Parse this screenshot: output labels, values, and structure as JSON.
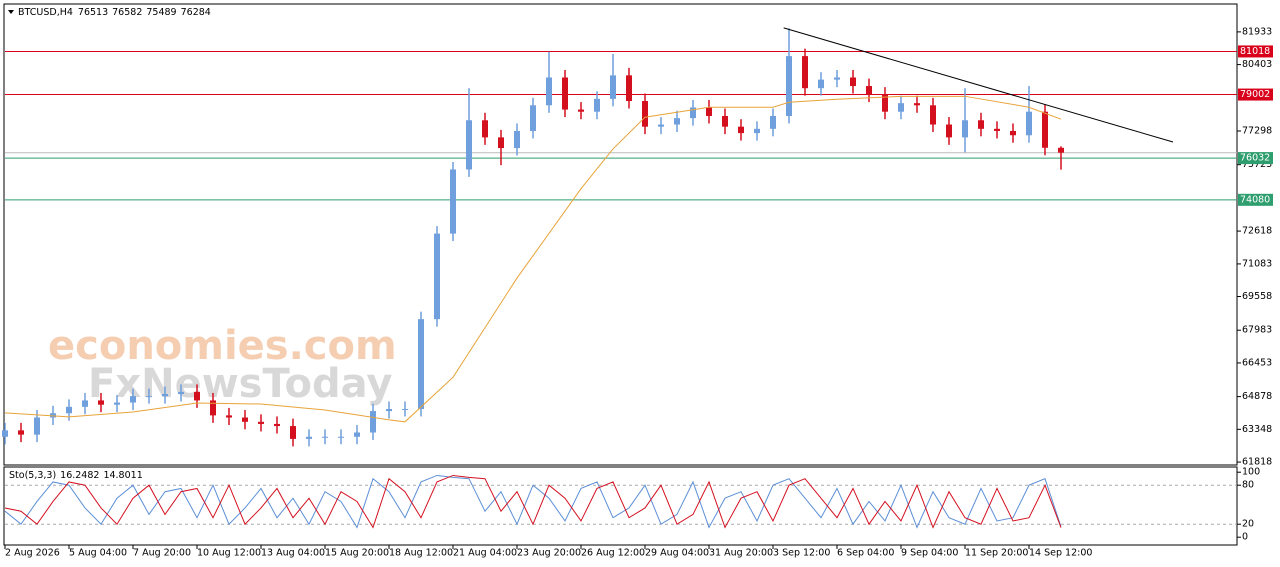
{
  "chart_data": [
    {
      "type": "candlestick",
      "symbol": "BTCUSD,H4",
      "up_color": "#6f9fdc",
      "down_color": "#d4101f",
      "x": [
        0,
        3,
        6,
        9,
        12,
        15,
        18,
        21,
        24,
        27,
        30,
        33,
        36,
        39,
        42,
        45,
        48,
        51,
        54,
        57,
        60,
        63,
        66,
        69,
        72,
        75,
        78,
        81,
        84,
        87,
        90,
        93,
        96,
        99,
        102,
        105,
        108,
        111,
        114,
        117,
        120,
        123,
        126,
        129,
        132,
        135,
        138,
        141,
        144,
        147,
        150,
        153,
        156,
        159,
        162,
        165,
        168,
        171,
        174,
        177,
        180,
        183,
        186,
        189,
        192,
        195,
        198
      ],
      "open": [
        63000,
        63300,
        63100,
        63900,
        64100,
        64400,
        64700,
        64500,
        64600,
        64900,
        64900,
        65000,
        65100,
        64700,
        64000,
        63900,
        63700,
        63600,
        63500,
        62900,
        63000,
        63000,
        63000,
        63200,
        64200,
        64300,
        64300,
        68500,
        72500,
        75500,
        77800,
        77000,
        76500,
        77300,
        78500,
        79800,
        78300,
        78200,
        78800,
        79900,
        78700,
        77500,
        77600,
        77900,
        78400,
        78000,
        77500,
        77200,
        77400,
        78000,
        80800,
        79300,
        79700,
        79800,
        79400,
        79000,
        78200,
        78600,
        78500,
        77600,
        77000,
        77800,
        77400,
        77300,
        77100,
        78200,
        76513
      ],
      "high": [
        63650,
        63650,
        64250,
        64450,
        64750,
        65050,
        65050,
        64950,
        65250,
        65250,
        65350,
        65450,
        65450,
        65050,
        64350,
        64250,
        64050,
        63950,
        63850,
        63350,
        63350,
        63350,
        63550,
        64550,
        64650,
        64650,
        68850,
        72850,
        75850,
        79300,
        78150,
        77350,
        77650,
        78850,
        81000,
        80150,
        78650,
        79150,
        80900,
        80250,
        79050,
        77950,
        78250,
        78750,
        78750,
        78350,
        77850,
        77750,
        78350,
        82100,
        81150,
        80050,
        80150,
        80150,
        79750,
        79350,
        78950,
        78950,
        78850,
        77950,
        79300,
        78150,
        77750,
        77650,
        79400,
        78550,
        76582
      ],
      "low": [
        62650,
        62750,
        62750,
        63550,
        63750,
        64050,
        64150,
        64150,
        64250,
        64550,
        64550,
        64650,
        64350,
        63650,
        63550,
        63350,
        63250,
        63150,
        62550,
        62550,
        62650,
        62650,
        62650,
        62850,
        63850,
        63950,
        63950,
        68150,
        72150,
        75150,
        76650,
        75700,
        76150,
        76950,
        78150,
        77950,
        77850,
        77850,
        78450,
        78350,
        77150,
        77150,
        77250,
        77550,
        77650,
        77150,
        76850,
        76850,
        77050,
        77650,
        78950,
        78950,
        79350,
        79050,
        78650,
        77850,
        77850,
        78150,
        77250,
        76650,
        76300,
        77050,
        76950,
        76750,
        76750,
        76163,
        75489
      ],
      "close": [
        63300,
        63100,
        63900,
        64100,
        64400,
        64700,
        64500,
        64600,
        64900,
        64900,
        65000,
        65100,
        64700,
        64000,
        63900,
        63700,
        63600,
        63500,
        62900,
        63000,
        63000,
        63000,
        63200,
        64200,
        64300,
        64300,
        68500,
        72500,
        75500,
        77800,
        77000,
        76500,
        77300,
        78500,
        79800,
        78300,
        78200,
        78800,
        79900,
        78700,
        77500,
        77600,
        77900,
        78400,
        78000,
        77500,
        77200,
        77400,
        78000,
        80800,
        79300,
        79700,
        79800,
        79400,
        79000,
        78200,
        78600,
        78500,
        77600,
        77000,
        77800,
        77400,
        77300,
        77100,
        78200,
        76513,
        76284
      ],
      "ma": {
        "color": "#e8a33a",
        "x": [
          0,
          12,
          24,
          36,
          48,
          60,
          72,
          75,
          84,
          96,
          108,
          114,
          120,
          132,
          144,
          147,
          156,
          168,
          180,
          192,
          198
        ],
        "values": [
          64115,
          63930,
          64160,
          64580,
          64530,
          64250,
          63790,
          63700,
          65780,
          70420,
          74600,
          76460,
          77940,
          78410,
          78410,
          78640,
          78780,
          78920,
          78920,
          78410,
          77850
        ]
      },
      "levels": [
        {
          "value": 81018,
          "color": "#d9001b"
        },
        {
          "value": 79002,
          "color": "#d9001b"
        },
        {
          "value": 76032,
          "color": "#2e9e6e"
        },
        {
          "value": 74080,
          "color": "#2e9e6e"
        }
      ],
      "trendline": {
        "x": [
          146,
          219
        ],
        "y": [
          82119,
          76783
        ],
        "color": "#000000"
      },
      "xlim": [
        0,
        231
      ],
      "ylim": [
        61680,
        83190
      ],
      "yticks": [
        81933,
        80403,
        77298,
        75723,
        72618,
        71083,
        69558,
        67983,
        66453,
        64878,
        63348,
        61818
      ],
      "xticks": [
        {
          "value": 0,
          "label": "2 Aug 2026"
        },
        {
          "value": 12,
          "label": "5 Aug 04:00"
        },
        {
          "value": 24,
          "label": "7 Aug 20:00"
        },
        {
          "value": 36,
          "label": "10 Aug 12:00"
        },
        {
          "value": 48,
          "label": "13 Aug 04:00"
        },
        {
          "value": 60,
          "label": "15 Aug 20:00"
        },
        {
          "value": 72,
          "label": "18 Aug 12:00"
        },
        {
          "value": 84,
          "label": "21 Aug 04:00"
        },
        {
          "value": 96,
          "label": "23 Aug 20:00"
        },
        {
          "value": 108,
          "label": "26 Aug 12:00"
        },
        {
          "value": 120,
          "label": "29 Aug 04:00"
        },
        {
          "value": 132,
          "label": "31 Aug 20:00"
        },
        {
          "value": 144,
          "label": "3 Sep 12:00"
        },
        {
          "value": 156,
          "label": "6 Sep 04:00"
        },
        {
          "value": 168,
          "label": "9 Sep 04:00"
        },
        {
          "value": 180,
          "label": "11 Sep 20:00"
        },
        {
          "value": 192,
          "label": "14 Sep 12:00"
        }
      ],
      "watermark": [
        "economies.com",
        "FxNewsToday"
      ]
    },
    {
      "type": "line",
      "title": "Sto(5,3,3)",
      "x": [
        0,
        3,
        6,
        9,
        12,
        15,
        18,
        21,
        24,
        27,
        30,
        33,
        36,
        39,
        42,
        45,
        48,
        51,
        54,
        57,
        60,
        63,
        66,
        69,
        72,
        75,
        78,
        81,
        84,
        87,
        90,
        93,
        96,
        99,
        102,
        105,
        108,
        111,
        114,
        117,
        120,
        123,
        126,
        129,
        132,
        135,
        138,
        141,
        144,
        147,
        150,
        153,
        156,
        159,
        162,
        165,
        168,
        171,
        174,
        177,
        180,
        183,
        186,
        189,
        192,
        195,
        198
      ],
      "series": [
        {
          "color": "#5b8fd6",
          "values": [
            40,
            20,
            55,
            85,
            80,
            45,
            20,
            60,
            80,
            35,
            70,
            75,
            30,
            80,
            20,
            45,
            75,
            30,
            60,
            20,
            70,
            55,
            15,
            90,
            70,
            30,
            85,
            95,
            92,
            90,
            40,
            70,
            20,
            80,
            60,
            25,
            75,
            85,
            30,
            45,
            80,
            20,
            35,
            85,
            15,
            60,
            70,
            25,
            80,
            90,
            60,
            30,
            75,
            20,
            55,
            25,
            80,
            15,
            70,
            30,
            20,
            75,
            25,
            30,
            80,
            90,
            16.2482
          ]
        },
        {
          "color": "#d4101f",
          "values": [
            45,
            40,
            20,
            55,
            85,
            80,
            45,
            20,
            60,
            80,
            35,
            70,
            75,
            30,
            80,
            20,
            45,
            75,
            30,
            60,
            20,
            70,
            55,
            15,
            90,
            70,
            30,
            85,
            95,
            92,
            90,
            40,
            70,
            20,
            80,
            60,
            25,
            75,
            85,
            30,
            45,
            80,
            20,
            35,
            85,
            15,
            60,
            70,
            25,
            80,
            90,
            60,
            30,
            75,
            20,
            55,
            25,
            80,
            15,
            70,
            30,
            20,
            75,
            25,
            30,
            80,
            14.8011
          ]
        }
      ],
      "xlim": [
        0,
        231
      ],
      "ylim": [
        -12,
        108
      ],
      "yticks": [
        100,
        80,
        20,
        0
      ],
      "dashed": [
        80,
        20
      ]
    }
  ]
}
